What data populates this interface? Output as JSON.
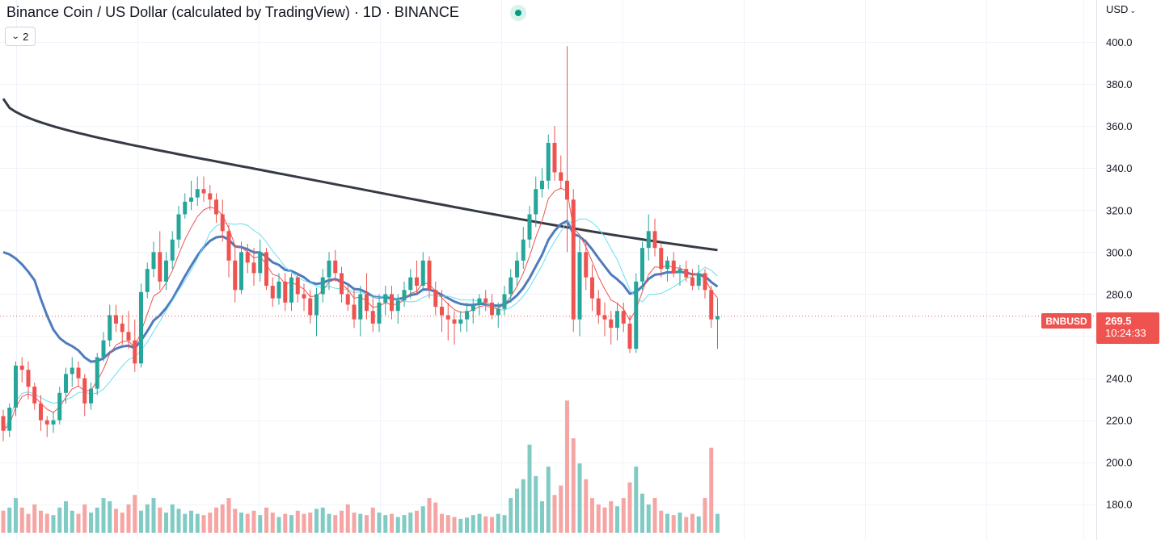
{
  "header": {
    "title": "Binance Coin / US Dollar (calculated by TradingView) · 1D · BINANCE",
    "indicators_count": "2",
    "currency": "USD"
  },
  "price_label": {
    "symbol": "BNBUSD",
    "price": "269.5",
    "countdown": "10:24:33"
  },
  "colors": {
    "up": "#26a69a",
    "down": "#ef5350",
    "volume_up": "#80cbc4",
    "volume_down": "#f5a5a3",
    "ma_slow": "#363a45",
    "ma_mid": "#4f7bbd",
    "ma_cyan": "#66e0f0",
    "ma_fast": "#ef5350",
    "grid": "#f0f3fa",
    "price_line": "#ef5350"
  },
  "chart_data": {
    "type": "candlestick",
    "symbol": "BNBUSD",
    "interval": "1D",
    "exchange": "BINANCE",
    "y_ticks": [
      180.0,
      200.0,
      220.0,
      240.0,
      260.0,
      280.0,
      300.0,
      320.0,
      340.0,
      360.0,
      380.0,
      400.0
    ],
    "ylim": [
      163,
      420
    ],
    "last_price": 269.5,
    "grid": true,
    "candles_ohlc": [
      [
        222,
        225,
        210,
        215
      ],
      [
        215,
        228,
        212,
        226
      ],
      [
        226,
        248,
        222,
        246
      ],
      [
        246,
        250,
        238,
        244
      ],
      [
        244,
        248,
        230,
        236
      ],
      [
        236,
        238,
        225,
        228
      ],
      [
        228,
        232,
        215,
        220
      ],
      [
        220,
        222,
        212,
        218
      ],
      [
        218,
        224,
        214,
        220
      ],
      [
        220,
        236,
        218,
        233
      ],
      [
        233,
        245,
        228,
        242
      ],
      [
        242,
        250,
        236,
        245
      ],
      [
        245,
        248,
        236,
        240
      ],
      [
        240,
        242,
        222,
        228
      ],
      [
        228,
        238,
        225,
        235
      ],
      [
        235,
        252,
        232,
        250
      ],
      [
        250,
        262,
        248,
        258
      ],
      [
        258,
        275,
        255,
        270
      ],
      [
        270,
        275,
        262,
        266
      ],
      [
        266,
        270,
        256,
        262
      ],
      [
        262,
        272,
        254,
        258
      ],
      [
        258,
        268,
        243,
        247
      ],
      [
        247,
        285,
        245,
        281
      ],
      [
        281,
        295,
        278,
        292
      ],
      [
        292,
        305,
        288,
        300
      ],
      [
        300,
        310,
        282,
        286
      ],
      [
        286,
        300,
        282,
        296
      ],
      [
        296,
        310,
        292,
        306
      ],
      [
        306,
        322,
        302,
        318
      ],
      [
        318,
        328,
        316,
        324
      ],
      [
        324,
        334,
        320,
        326
      ],
      [
        326,
        336,
        322,
        330
      ],
      [
        330,
        336,
        324,
        328
      ],
      [
        328,
        332,
        320,
        325
      ],
      [
        325,
        328,
        314,
        318
      ],
      [
        318,
        325,
        305,
        310
      ],
      [
        310,
        313,
        288,
        296
      ],
      [
        296,
        302,
        276,
        282
      ],
      [
        282,
        305,
        280,
        300
      ],
      [
        300,
        304,
        290,
        295
      ],
      [
        295,
        302,
        284,
        290
      ],
      [
        290,
        306,
        286,
        300
      ],
      [
        300,
        302,
        282,
        284
      ],
      [
        284,
        288,
        274,
        278
      ],
      [
        278,
        290,
        275,
        286
      ],
      [
        286,
        290,
        272,
        276
      ],
      [
        276,
        290,
        272,
        288
      ],
      [
        288,
        290,
        276,
        280
      ],
      [
        280,
        285,
        272,
        278
      ],
      [
        278,
        282,
        266,
        270
      ],
      [
        270,
        283,
        260,
        280
      ],
      [
        280,
        292,
        276,
        288
      ],
      [
        288,
        300,
        282,
        296
      ],
      [
        296,
        301,
        286,
        290
      ],
      [
        290,
        293,
        276,
        280
      ],
      [
        280,
        284,
        272,
        275
      ],
      [
        275,
        282,
        264,
        268
      ],
      [
        268,
        284,
        260,
        280
      ],
      [
        280,
        290,
        268,
        272
      ],
      [
        272,
        278,
        262,
        266
      ],
      [
        266,
        280,
        262,
        276
      ],
      [
        276,
        284,
        270,
        280
      ],
      [
        280,
        284,
        268,
        272
      ],
      [
        272,
        280,
        266,
        277
      ],
      [
        277,
        286,
        274,
        282
      ],
      [
        282,
        292,
        278,
        288
      ],
      [
        288,
        296,
        280,
        284
      ],
      [
        284,
        300,
        282,
        296
      ],
      [
        296,
        298,
        278,
        282
      ],
      [
        282,
        286,
        270,
        274
      ],
      [
        274,
        282,
        262,
        270
      ],
      [
        270,
        276,
        258,
        268
      ],
      [
        268,
        272,
        256,
        266
      ],
      [
        266,
        272,
        262,
        268
      ],
      [
        268,
        276,
        262,
        272
      ],
      [
        272,
        278,
        266,
        275
      ],
      [
        275,
        280,
        270,
        278
      ],
      [
        278,
        282,
        272,
        276
      ],
      [
        276,
        280,
        268,
        270
      ],
      [
        270,
        276,
        264,
        273
      ],
      [
        273,
        284,
        270,
        280
      ],
      [
        280,
        292,
        276,
        288
      ],
      [
        288,
        300,
        284,
        296
      ],
      [
        296,
        312,
        292,
        306
      ],
      [
        306,
        322,
        302,
        318
      ],
      [
        318,
        336,
        312,
        330
      ],
      [
        330,
        340,
        326,
        334
      ],
      [
        334,
        356,
        330,
        352
      ],
      [
        352,
        360,
        334,
        338
      ],
      [
        338,
        346,
        330,
        334
      ],
      [
        334,
        398,
        300,
        325
      ],
      [
        325,
        330,
        262,
        268
      ],
      [
        268,
        308,
        260,
        300
      ],
      [
        300,
        306,
        282,
        288
      ],
      [
        288,
        294,
        272,
        278
      ],
      [
        278,
        282,
        266,
        270
      ],
      [
        270,
        276,
        260,
        268
      ],
      [
        268,
        272,
        256,
        264
      ],
      [
        264,
        276,
        258,
        272
      ],
      [
        272,
        276,
        262,
        266
      ],
      [
        266,
        270,
        252,
        254
      ],
      [
        254,
        290,
        252,
        286
      ],
      [
        286,
        305,
        282,
        302
      ],
      [
        302,
        318,
        296,
        310
      ],
      [
        310,
        316,
        298,
        302
      ],
      [
        302,
        304,
        288,
        292
      ],
      [
        292,
        298,
        286,
        296
      ],
      [
        296,
        300,
        288,
        290
      ],
      [
        290,
        294,
        284,
        292
      ],
      [
        292,
        296,
        286,
        288
      ],
      [
        288,
        292,
        282,
        284
      ],
      [
        284,
        294,
        282,
        290
      ],
      [
        290,
        292,
        278,
        282
      ],
      [
        282,
        284,
        264,
        268
      ],
      [
        268,
        278,
        254,
        269.5
      ]
    ],
    "volume_relative": [
      0.35,
      0.4,
      0.55,
      0.4,
      0.3,
      0.45,
      0.35,
      0.3,
      0.28,
      0.4,
      0.5,
      0.35,
      0.3,
      0.45,
      0.32,
      0.4,
      0.55,
      0.5,
      0.38,
      0.32,
      0.45,
      0.6,
      0.35,
      0.45,
      0.55,
      0.4,
      0.32,
      0.45,
      0.38,
      0.3,
      0.35,
      0.3,
      0.28,
      0.32,
      0.4,
      0.45,
      0.55,
      0.38,
      0.32,
      0.3,
      0.35,
      0.28,
      0.4,
      0.32,
      0.25,
      0.3,
      0.28,
      0.35,
      0.3,
      0.32,
      0.38,
      0.4,
      0.3,
      0.28,
      0.35,
      0.45,
      0.32,
      0.3,
      0.28,
      0.4,
      0.32,
      0.28,
      0.3,
      0.25,
      0.28,
      0.32,
      0.35,
      0.42,
      0.55,
      0.48,
      0.3,
      0.28,
      0.25,
      0.22,
      0.24,
      0.28,
      0.3,
      0.26,
      0.25,
      0.3,
      0.28,
      0.55,
      0.7,
      0.85,
      1.4,
      0.9,
      0.5,
      1.05,
      0.6,
      0.75,
      2.1,
      1.5,
      1.1,
      0.85,
      0.55,
      0.45,
      0.4,
      0.5,
      0.42,
      0.55,
      0.8,
      1.05,
      0.62,
      0.45,
      0.55,
      0.35,
      0.3,
      0.28,
      0.32,
      0.25,
      0.3,
      0.26,
      0.55,
      1.35,
      0.3
    ]
  }
}
